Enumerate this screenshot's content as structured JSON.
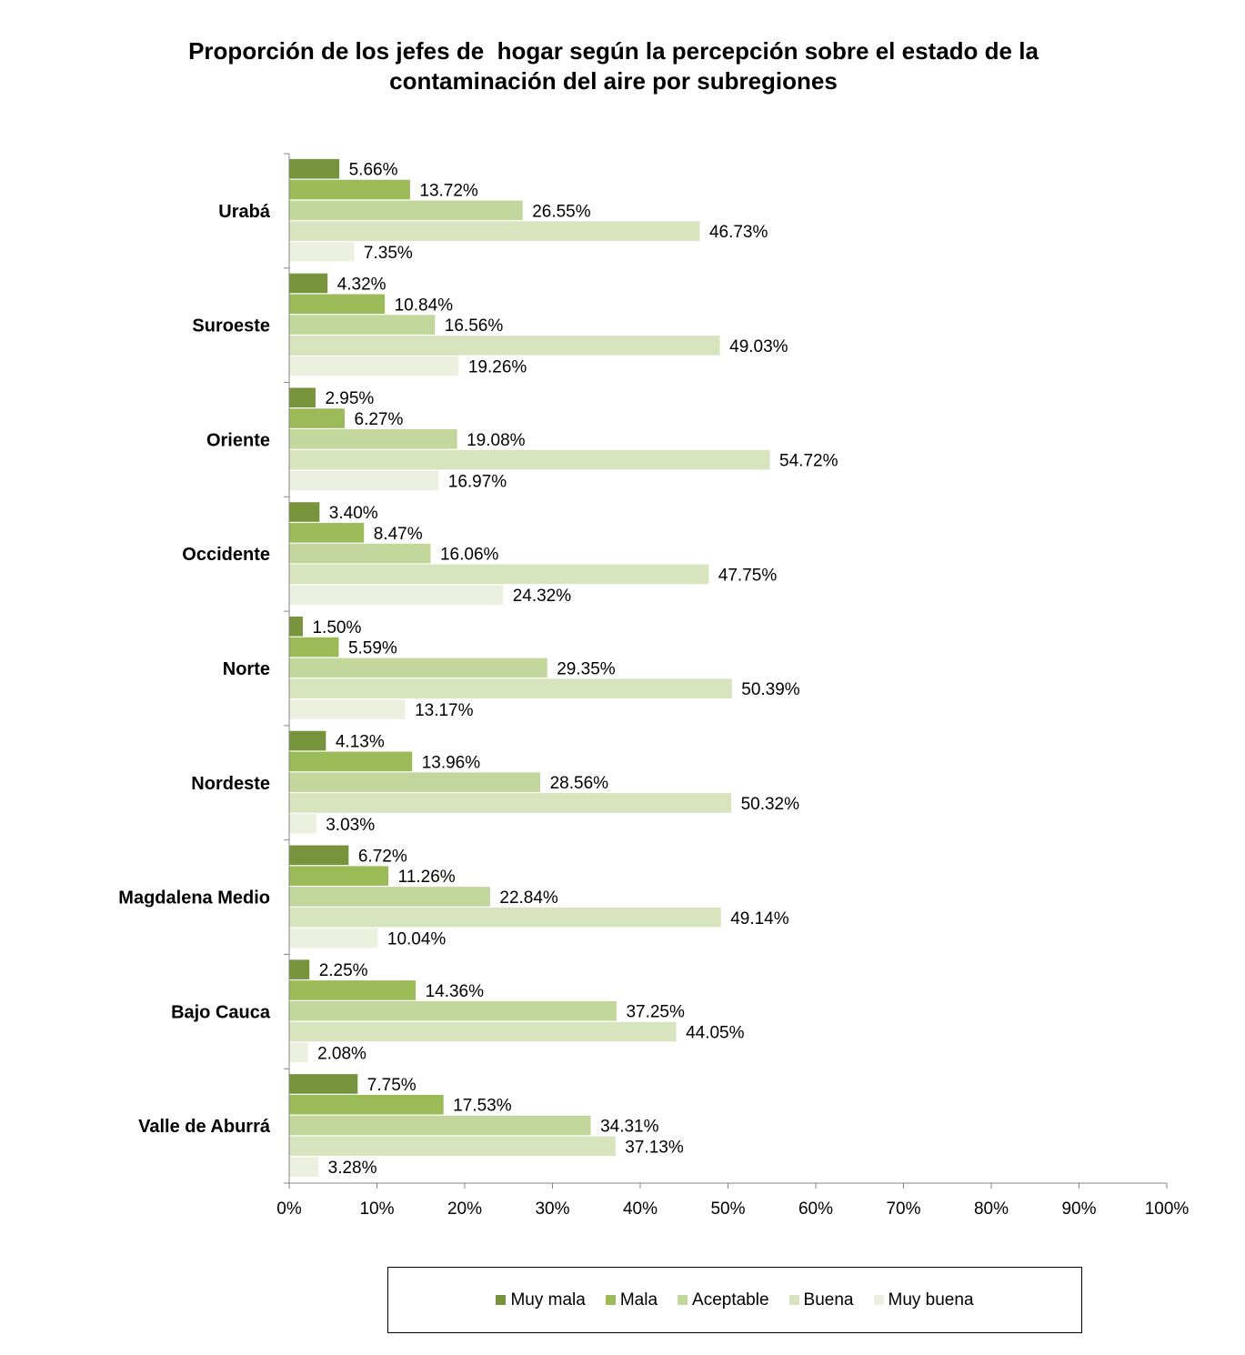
{
  "chart_data": {
    "type": "bar",
    "orientation": "horizontal",
    "title": [
      "Proporción de los jefes de  hogar según la percepción sobre el estado de la",
      "contaminación del aire por subregiones"
    ],
    "categories": [
      "Urabá",
      "Suroeste",
      "Oriente",
      "Occidente",
      "Norte",
      "Nordeste",
      "Magdalena Medio",
      "Bajo Cauca",
      "Valle de Aburrá"
    ],
    "series": [
      {
        "name": "Muy mala",
        "color": "#77933c",
        "values": [
          5.66,
          4.32,
          2.95,
          3.4,
          1.5,
          4.13,
          6.72,
          2.25,
          7.75
        ],
        "labels": [
          "5.66%",
          "4.32%",
          "2.95%",
          "3.40%",
          "1.50%",
          "4.13%",
          "6.72%",
          "2.25%",
          "7.75%"
        ]
      },
      {
        "name": "Mala",
        "color": "#9bbb59",
        "values": [
          13.72,
          10.84,
          6.27,
          8.47,
          5.59,
          13.96,
          11.26,
          14.36,
          17.53
        ],
        "labels": [
          "13.72%",
          "10.84%",
          "6.27%",
          "8.47%",
          "5.59%",
          "13.96%",
          "11.26%",
          "14.36%",
          "17.53%"
        ]
      },
      {
        "name": "Aceptable",
        "color": "#c3d69b",
        "values": [
          26.55,
          16.56,
          19.08,
          16.06,
          29.35,
          28.56,
          22.84,
          37.25,
          34.31
        ],
        "labels": [
          "26.55%",
          "16.56%",
          "19.08%",
          "16.06%",
          "29.35%",
          "28.56%",
          "22.84%",
          "37.25%",
          "34.31%"
        ]
      },
      {
        "name": "Buena",
        "color": "#d7e4bd",
        "values": [
          46.73,
          49.03,
          54.72,
          47.75,
          50.39,
          50.32,
          49.14,
          44.05,
          37.13
        ],
        "labels": [
          "46.73%",
          "49.03%",
          "54.72%",
          "47.75%",
          "50.39%",
          "50.32%",
          "49.14%",
          "44.05%",
          "37.13%"
        ]
      },
      {
        "name": "Muy buena",
        "color": "#ebf1de",
        "values": [
          7.35,
          19.26,
          16.97,
          24.32,
          13.17,
          3.03,
          10.04,
          2.08,
          3.28
        ],
        "labels": [
          "7.35%",
          "19.26%",
          "16.97%",
          "24.32%",
          "13.17%",
          "3.03%",
          "10.04%",
          "2.08%",
          "3.28%"
        ]
      }
    ],
    "xlim": [
      0,
      100
    ],
    "xticks": [
      "0%",
      "10%",
      "20%",
      "30%",
      "40%",
      "50%",
      "60%",
      "70%",
      "80%",
      "90%",
      "100%"
    ],
    "xlabel": "",
    "ylabel": "",
    "grid": false,
    "legend_position": "bottom"
  }
}
